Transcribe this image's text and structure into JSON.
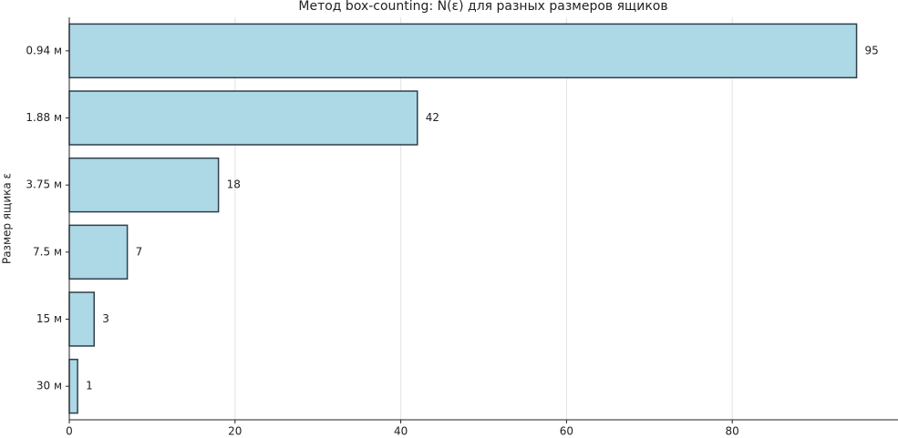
{
  "chart_data": {
    "type": "barh",
    "title": "Метод box-counting: N(ε) для разных размеров ящиков",
    "y_label": "Размер ящика ε",
    "categories": [
      "0.94 м",
      "1.88 м",
      "3.75 м",
      "7.5 м",
      "15 м",
      "30 м"
    ],
    "values": [
      95,
      42,
      18,
      7,
      3,
      1
    ],
    "color": "#add8e6",
    "edge_color": "#2f3f4a",
    "xlim": [
      0,
      100
    ],
    "xticks": [
      0,
      20,
      40,
      60,
      80
    ],
    "grid": true
  }
}
